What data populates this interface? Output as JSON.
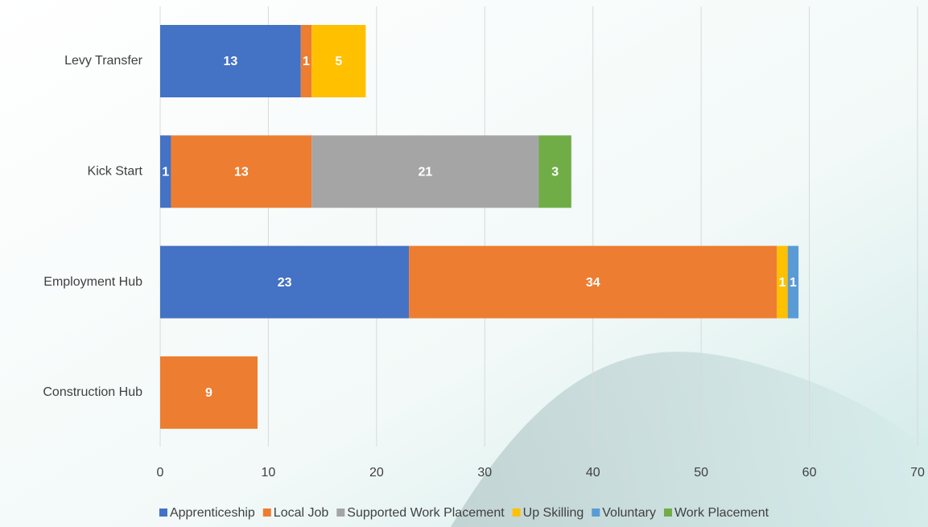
{
  "chart_data": {
    "type": "bar",
    "orientation": "horizontal",
    "stacked": true,
    "categories": [
      "Levy Transfer",
      "Kick Start",
      "Employment Hub",
      "Construction Hub"
    ],
    "series": [
      {
        "name": "Apprenticeship",
        "color": "#4472c4",
        "values": [
          13,
          1,
          23,
          null
        ]
      },
      {
        "name": "Local Job",
        "color": "#ed7d31",
        "values": [
          1,
          13,
          34,
          9
        ]
      },
      {
        "name": "Supported Work Placement",
        "color": "#a5a5a5",
        "values": [
          null,
          21,
          null,
          null
        ]
      },
      {
        "name": "Up Skilling",
        "color": "#ffc000",
        "values": [
          5,
          null,
          1,
          null
        ]
      },
      {
        "name": "Voluntary",
        "color": "#5b9bd5",
        "values": [
          null,
          null,
          1,
          null
        ]
      },
      {
        "name": "Work Placement",
        "color": "#70ad47",
        "values": [
          null,
          3,
          null,
          null
        ]
      }
    ],
    "xlim": [
      0,
      70
    ],
    "xticks": [
      0,
      10,
      20,
      30,
      40,
      50,
      60,
      70
    ],
    "grid": true,
    "legend": "bottom"
  }
}
